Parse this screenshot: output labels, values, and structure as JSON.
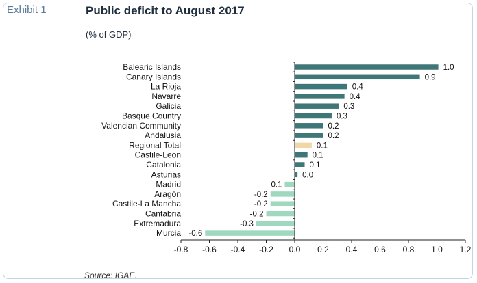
{
  "header": {
    "exhibit": "Exhibit 1",
    "title": "Public deficit to August 2017",
    "subtitle": "(% of GDP)"
  },
  "footer": {
    "source": "Source: IGAE."
  },
  "colors": {
    "positive": "#3f7779",
    "negative": "#9fd8bf",
    "total": "#efd8a6"
  },
  "chart_data": {
    "type": "bar",
    "orientation": "horizontal",
    "title": "Public deficit to August 2017",
    "subtitle": "(% of GDP)",
    "xlabel": "",
    "ylabel": "",
    "xlim": [
      -0.8,
      1.2
    ],
    "xticks": [
      "-0.8",
      "-0.6",
      "-0.4",
      "-0.2",
      "0.0",
      "0.2",
      "0.4",
      "0.6",
      "0.8",
      "1.0",
      "1.2"
    ],
    "grid": false,
    "categories": [
      "Balearic Islands",
      "Canary Islands",
      "La Rioja",
      "Navarre",
      "Galicia",
      "Basque Country",
      "Valencian Community",
      "Andalusia",
      "Regional Total",
      "Castile-Leon",
      "Catalonia",
      "Asturias",
      "Madrid",
      "Aragón",
      "Castile-La Mancha",
      "Cantabria",
      "Extremadura",
      "Murcia"
    ],
    "values": [
      1.01,
      0.88,
      0.37,
      0.35,
      0.31,
      0.26,
      0.2,
      0.2,
      0.12,
      0.09,
      0.07,
      0.02,
      -0.07,
      -0.17,
      -0.17,
      -0.2,
      -0.27,
      -0.63
    ],
    "data_labels": [
      "1.0",
      "0.9",
      "0.4",
      "0.4",
      "0.3",
      "0.3",
      "0.2",
      "0.2",
      "0.1",
      "0.1",
      "0.1",
      "0.0",
      "-0.1",
      "-0.2",
      "-0.2",
      "-0.2",
      "-0.3",
      "-0.6"
    ],
    "highlight": "Regional Total"
  }
}
